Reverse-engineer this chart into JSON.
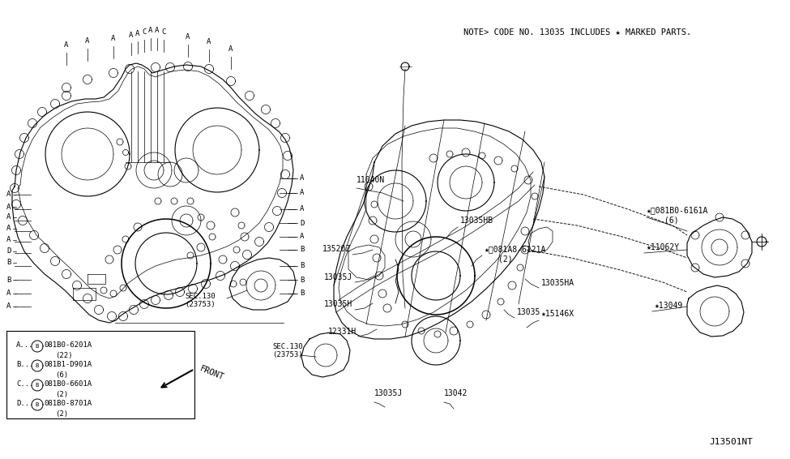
{
  "bg_color": "#ffffff",
  "line_color": "#000000",
  "fig_width": 9.75,
  "fig_height": 5.66,
  "dpi": 100,
  "note_text": "NOTE> CODE NO. 13035 INCLUDES ★ MARKED PARTS.",
  "diagram_id": "J13501NT",
  "bolt_labels_top": [
    "A",
    "A",
    "A",
    "A",
    "A",
    "C",
    "A",
    "A",
    "C",
    "A",
    "A",
    "A"
  ],
  "legend_items": [
    [
      "A...",
      "Ⓑ081B0-6201A",
      "(22)"
    ],
    [
      "B...",
      "Ⓑ081B1-D901A",
      "(6)"
    ],
    [
      "C...",
      "Ⓑ081B0-6601A",
      "(2)"
    ],
    [
      "D...",
      "Ⓑ081B0-8701A",
      "(2)"
    ]
  ]
}
